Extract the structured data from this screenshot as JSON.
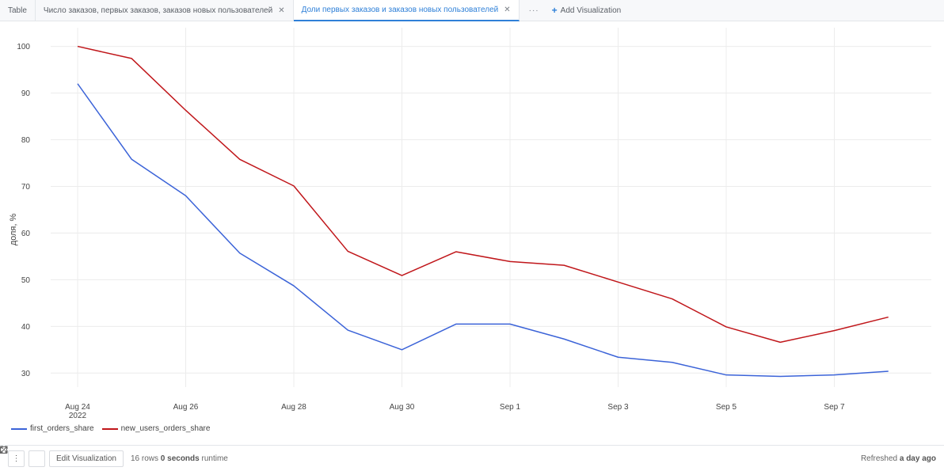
{
  "tabs": [
    {
      "label": "Table",
      "closable": false,
      "active": false
    },
    {
      "label": "Число заказов, первых заказов, заказов новых пользователей",
      "closable": true,
      "active": false
    },
    {
      "label": "Доли первых заказов и заказов новых пользователей",
      "closable": true,
      "active": true
    }
  ],
  "tabbar": {
    "more_label": "···",
    "add_label": "Add Visualization"
  },
  "chart_data": {
    "type": "line",
    "ylabel": "доля, %",
    "xlabel": "",
    "ylim": [
      27,
      104
    ],
    "yticks": [
      30,
      40,
      50,
      60,
      70,
      80,
      90,
      100
    ],
    "x": [
      "2022-08-24",
      "2022-08-25",
      "2022-08-26",
      "2022-08-27",
      "2022-08-28",
      "2022-08-29",
      "2022-08-30",
      "2022-08-31",
      "2022-09-01",
      "2022-09-02",
      "2022-09-03",
      "2022-09-04",
      "2022-09-05",
      "2022-09-06",
      "2022-09-07",
      "2022-09-08"
    ],
    "xticks": [
      {
        "label": "Aug 24",
        "sublabel": "2022",
        "index": 0
      },
      {
        "label": "Aug 26",
        "sublabel": "",
        "index": 2
      },
      {
        "label": "Aug 28",
        "sublabel": "",
        "index": 4
      },
      {
        "label": "Aug 30",
        "sublabel": "",
        "index": 6
      },
      {
        "label": "Sep 1",
        "sublabel": "",
        "index": 8
      },
      {
        "label": "Sep 3",
        "sublabel": "",
        "index": 10
      },
      {
        "label": "Sep 5",
        "sublabel": "",
        "index": 12
      },
      {
        "label": "Sep 7",
        "sublabel": "",
        "index": 14
      }
    ],
    "series": [
      {
        "name": "first_orders_share",
        "color": "#3b63d8",
        "values": [
          92,
          75.8,
          68,
          55.7,
          48.7,
          39.2,
          35,
          40.5,
          40.5,
          37.3,
          33.4,
          32.3,
          29.6,
          29.3,
          29.6,
          30.4
        ]
      },
      {
        "name": "new_users_orders_share",
        "color": "#c0161a",
        "values": [
          100,
          97.4,
          86.3,
          75.8,
          70.1,
          56.1,
          50.9,
          56,
          53.9,
          53.1,
          49.5,
          45.9,
          39.9,
          36.6,
          39.1,
          42
        ]
      }
    ],
    "grid": true,
    "legend_position": "bottom-left"
  },
  "footer": {
    "menu_icon": "vertical-dots-icon",
    "expand_icon": "expand-icon",
    "edit_label": "Edit Visualization",
    "rows_count": "16",
    "rows_label": "rows",
    "runtime_value": "0 seconds",
    "runtime_label": "runtime",
    "refreshed_prefix": "Refreshed",
    "refreshed_value": "a day ago"
  }
}
